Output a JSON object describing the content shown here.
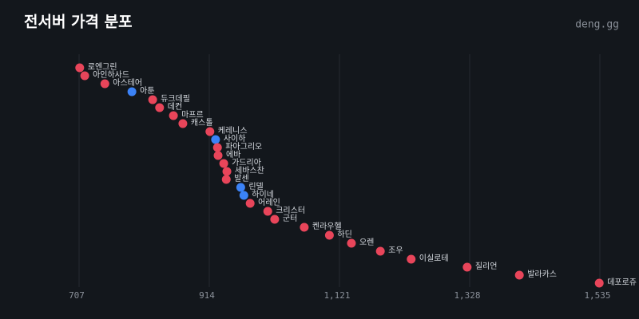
{
  "chart_data": {
    "type": "dot",
    "title": "전서버 가격 분포",
    "brand": "deng.gg",
    "categories": [
      "로엔그린",
      "아인하사드",
      "아스테어",
      "아툰",
      "듀크데필",
      "데컨",
      "마프르",
      "캐스톨",
      "케레니스",
      "사이하",
      "파아그리오",
      "에바",
      "가드리아",
      "세바스찬",
      "발센",
      "린델",
      "하이네",
      "어레인",
      "크리스터",
      "군터",
      "켄라우헬",
      "하딘",
      "오렌",
      "조우",
      "이실로테",
      "질리언",
      "발라카스",
      "데포로쥬"
    ],
    "values": [
      708,
      716,
      748,
      791,
      824,
      835,
      857,
      872,
      915,
      924,
      927,
      928,
      937,
      942,
      941,
      964,
      969,
      979,
      1007,
      1018,
      1065,
      1105,
      1140,
      1186,
      1235,
      1324,
      1407,
      1534
    ],
    "colors": [
      "#e8455a",
      "#e8455a",
      "#e8455a",
      "#3b82f6",
      "#e8455a",
      "#e8455a",
      "#e8455a",
      "#e8455a",
      "#e8455a",
      "#3b82f6",
      "#e8455a",
      "#e8455a",
      "#e8455a",
      "#e8455a",
      "#e8455a",
      "#3b82f6",
      "#3b82f6",
      "#e8455a",
      "#e8455a",
      "#e8455a",
      "#e8455a",
      "#e8455a",
      "#e8455a",
      "#e8455a",
      "#e8455a",
      "#e8455a",
      "#e8455a",
      "#e8455a"
    ],
    "xlim": [
      707,
      1535
    ],
    "xticks": [
      707,
      914,
      {
        "value": 1121,
        "label": "1,121"
      },
      {
        "value": 1328,
        "label": "1,328"
      },
      {
        "value": 1535,
        "label": "1,535"
      }
    ],
    "grid": true
  }
}
